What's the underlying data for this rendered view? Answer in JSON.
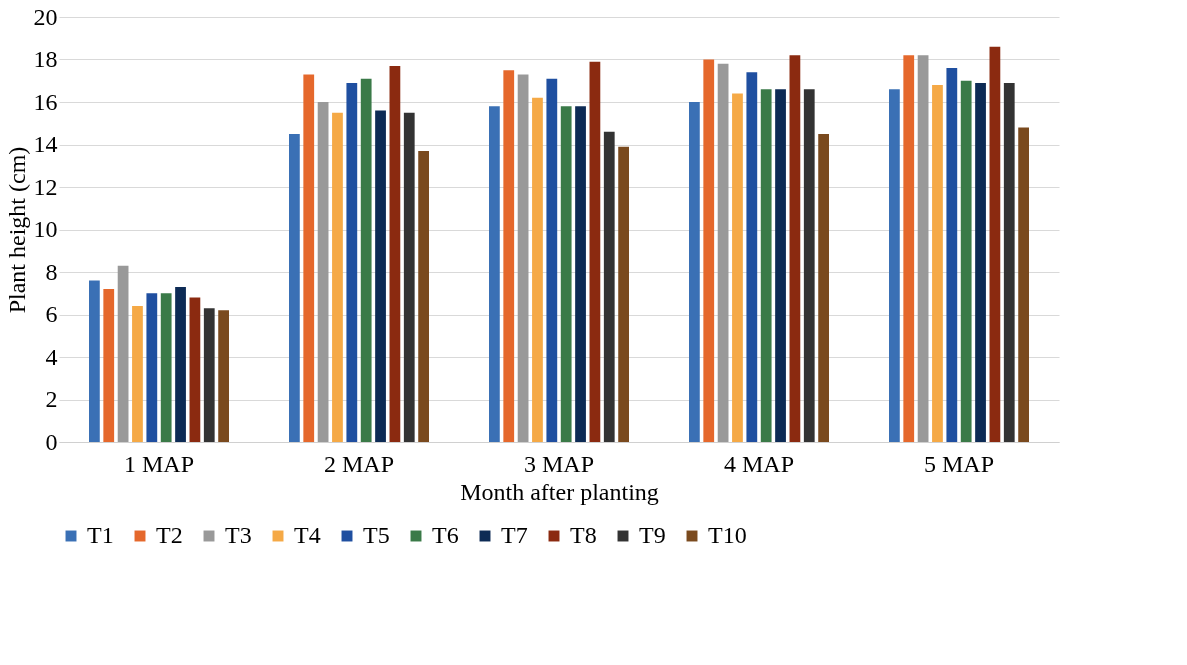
{
  "chart_data": {
    "type": "bar",
    "xlabel": "Month after planting",
    "ylabel": "Plant height (cm)",
    "categories": [
      "1 MAP",
      "2 MAP",
      "3 MAP",
      "4 MAP",
      "5 MAP"
    ],
    "series": [
      {
        "name": "T1",
        "color": "#3a70b5",
        "values": [
          7.6,
          14.5,
          15.8,
          16.0,
          16.6
        ]
      },
      {
        "name": "T2",
        "color": "#e5682c",
        "values": [
          7.2,
          17.3,
          17.5,
          18.0,
          18.2
        ]
      },
      {
        "name": "T3",
        "color": "#999999",
        "values": [
          8.3,
          16.0,
          17.3,
          17.8,
          18.2
        ]
      },
      {
        "name": "T4",
        "color": "#f5a946",
        "values": [
          6.4,
          15.5,
          16.2,
          16.4,
          16.8
        ]
      },
      {
        "name": "T5",
        "color": "#1f4fa0",
        "values": [
          7.0,
          16.9,
          17.1,
          17.4,
          17.6
        ]
      },
      {
        "name": "T6",
        "color": "#3a7a48",
        "values": [
          7.0,
          17.1,
          15.8,
          16.6,
          17.0
        ]
      },
      {
        "name": "T7",
        "color": "#0d2b55",
        "values": [
          7.3,
          15.6,
          15.8,
          16.6,
          16.9
        ]
      },
      {
        "name": "T8",
        "color": "#8b2a10",
        "values": [
          6.8,
          17.7,
          17.9,
          18.2,
          18.6
        ]
      },
      {
        "name": "T9",
        "color": "#333333",
        "values": [
          6.3,
          15.5,
          14.6,
          16.6,
          16.9
        ]
      },
      {
        "name": "T10",
        "color": "#7a4a1e",
        "values": [
          6.2,
          13.7,
          13.9,
          14.5,
          14.8
        ]
      }
    ],
    "ylim": [
      0,
      20
    ],
    "yticks": [
      0,
      2,
      4,
      6,
      8,
      10,
      12,
      14,
      16,
      18,
      20
    ],
    "grid": "y",
    "legend": "bottom"
  }
}
